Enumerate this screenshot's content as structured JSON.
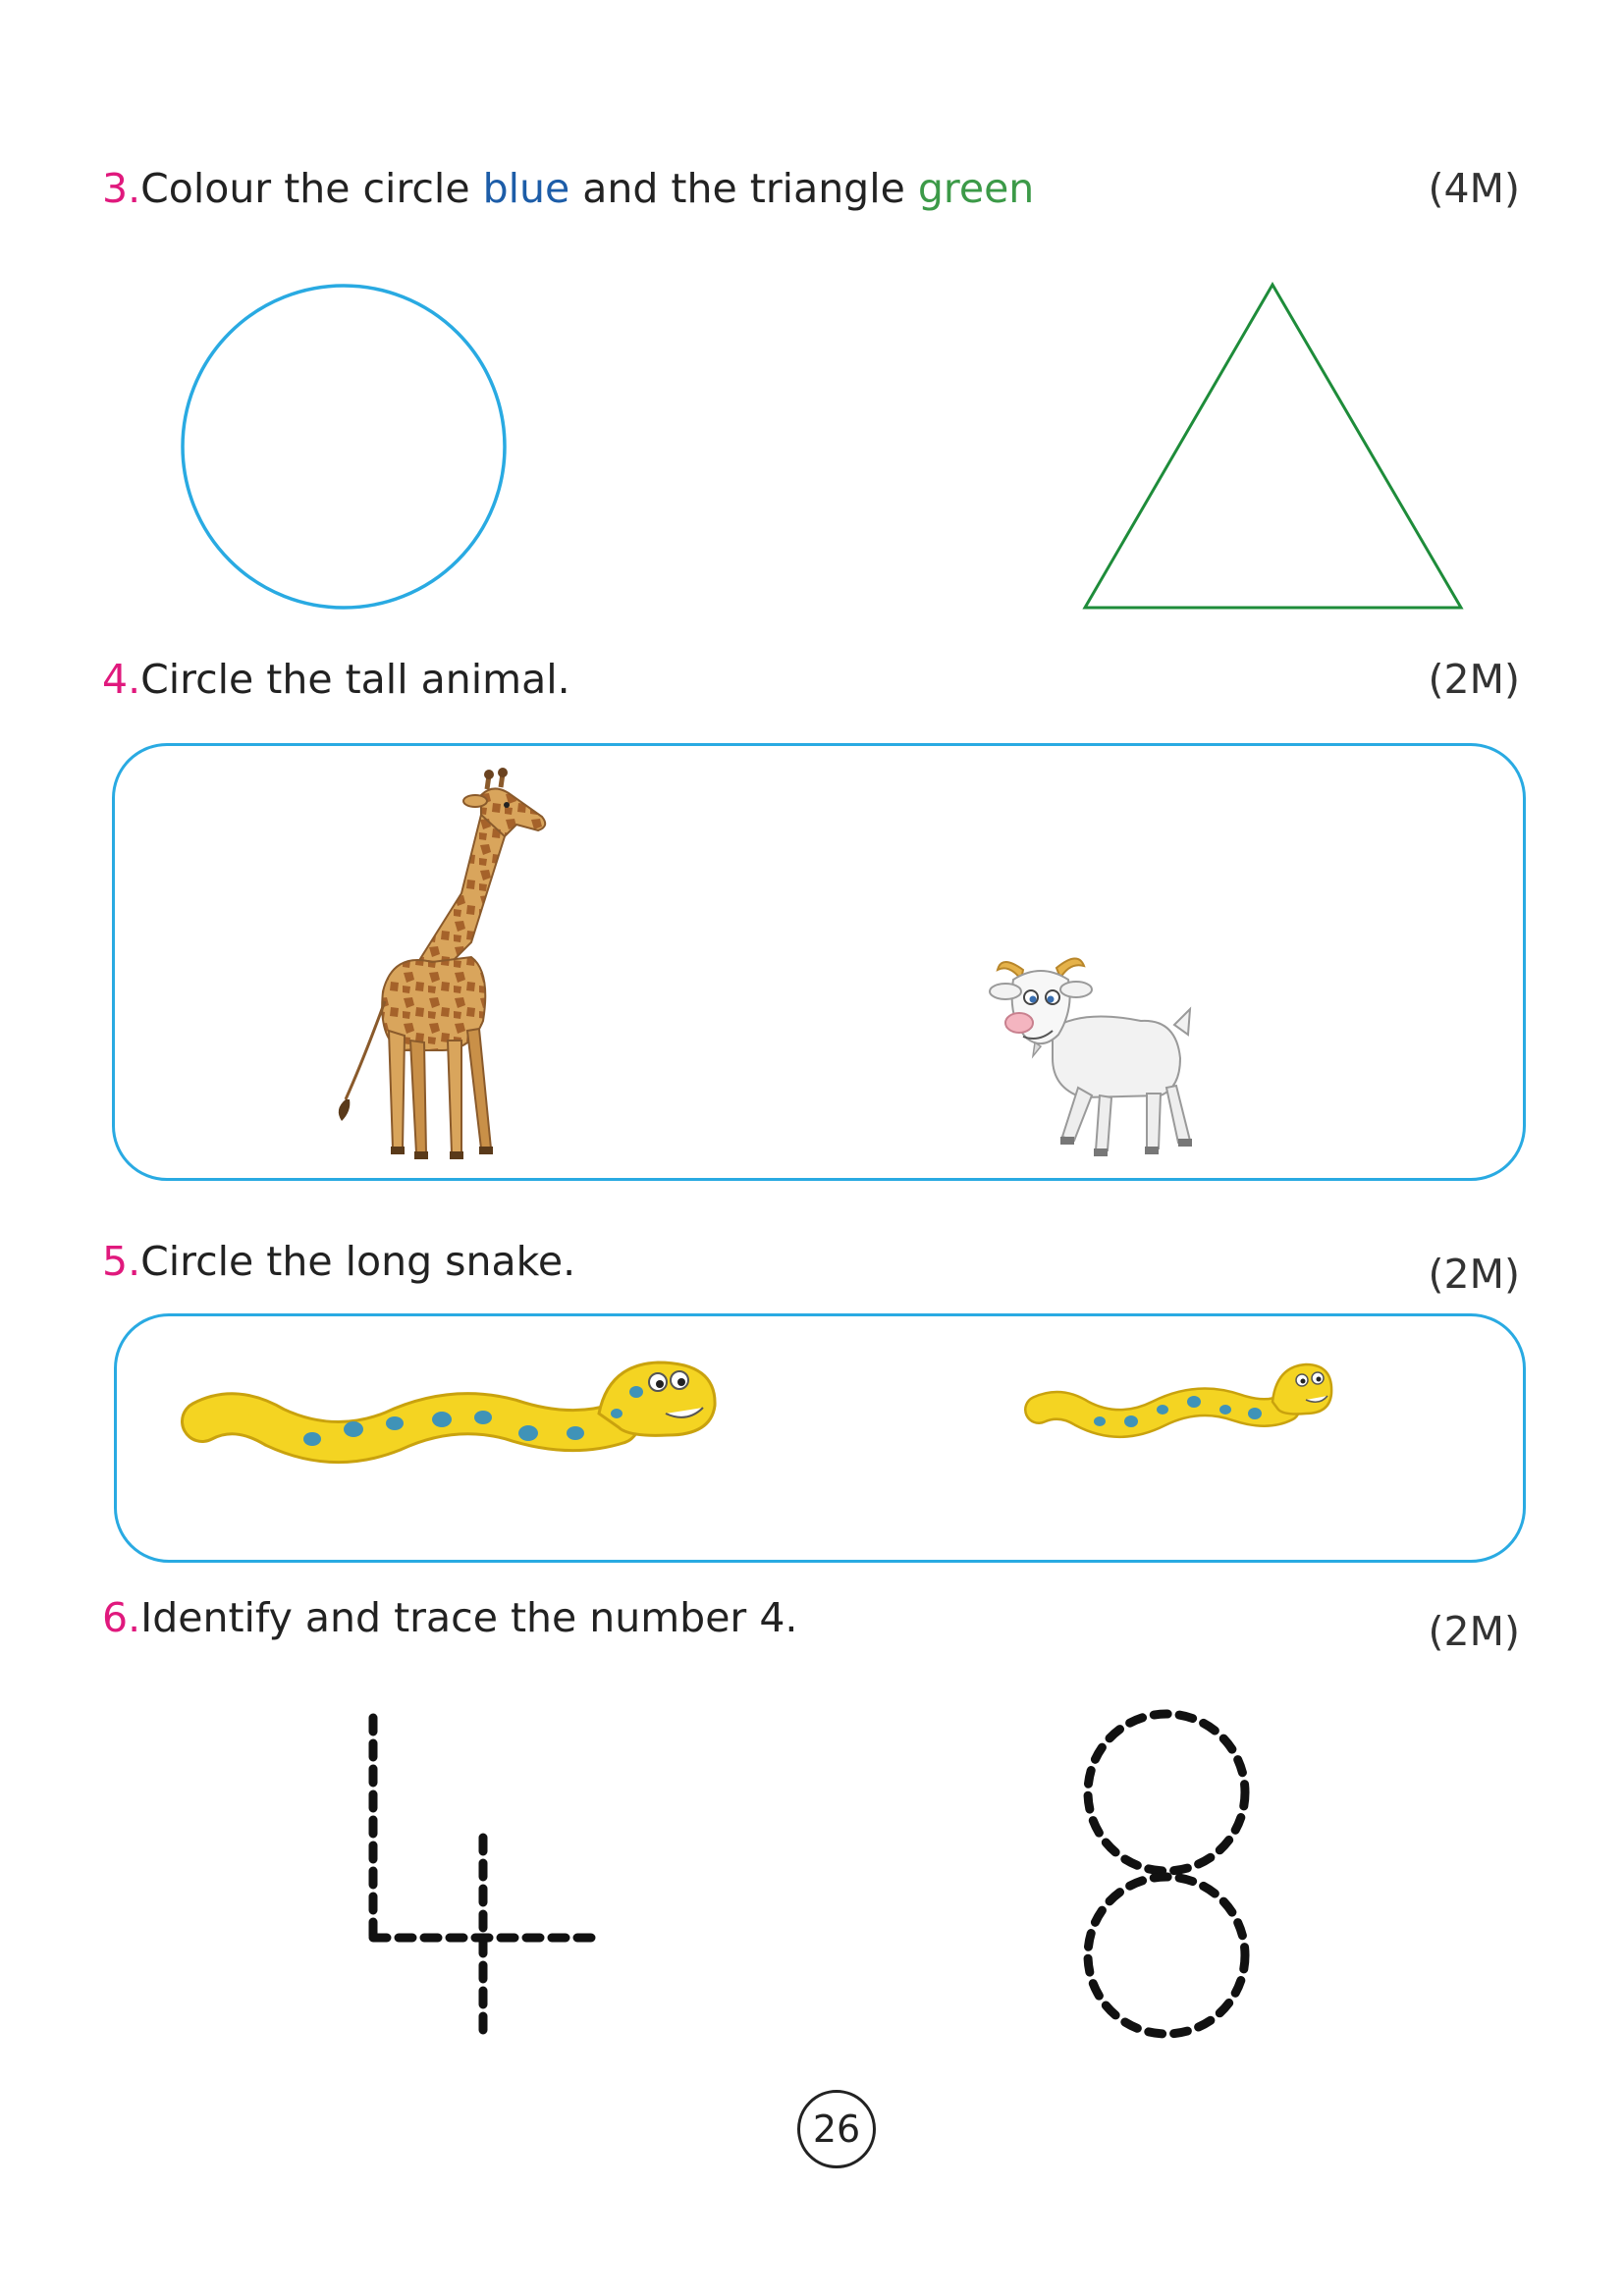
{
  "colors": {
    "question_number": "#e0197d",
    "blue_word": "#1d5da8",
    "green_word": "#3c9a48",
    "circle_stroke": "#29aae2",
    "triangle_stroke": "#1e8c3a",
    "box_border": "#29aae2"
  },
  "q3": {
    "number": "3.",
    "text_before": "Colour the circle ",
    "blue_word": "blue",
    "text_middle": " and the triangle ",
    "green_word": "green",
    "marks": "(4M)"
  },
  "q4": {
    "number": "4.",
    "text": "Circle the tall animal.",
    "marks": "(2M)",
    "images": [
      "giraffe",
      "goat"
    ]
  },
  "q5": {
    "number": "5.",
    "text": "Circle the long snake.",
    "marks": "(2M)",
    "images": [
      "long-snake",
      "short-snake"
    ]
  },
  "q6": {
    "number": "6.",
    "text": "Identify and trace the number 4.",
    "marks": "(2M)",
    "figures": [
      "dotted-four",
      "dotted-eight"
    ]
  },
  "page_number": "26"
}
